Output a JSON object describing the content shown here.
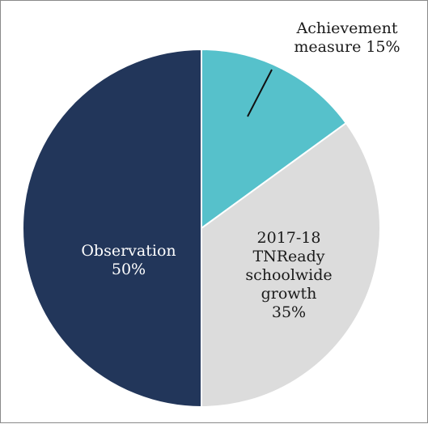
{
  "chart_data": {
    "type": "pie",
    "slices": [
      {
        "label_lines": [
          "Achievement",
          "measure 15%"
        ],
        "value": 15,
        "color": "#56c1cb",
        "text_color": "#1a1a1a"
      },
      {
        "label_lines": [
          "2017-18",
          "TNReady",
          "schoolwide",
          "growth",
          "35%"
        ],
        "value": 35,
        "color": "#dcdcdc",
        "text_color": "#1a1a1a"
      },
      {
        "label_lines": [
          "Observation",
          "50%"
        ],
        "value": 50,
        "color": "#22365a",
        "text_color": "#ffffff"
      }
    ]
  }
}
